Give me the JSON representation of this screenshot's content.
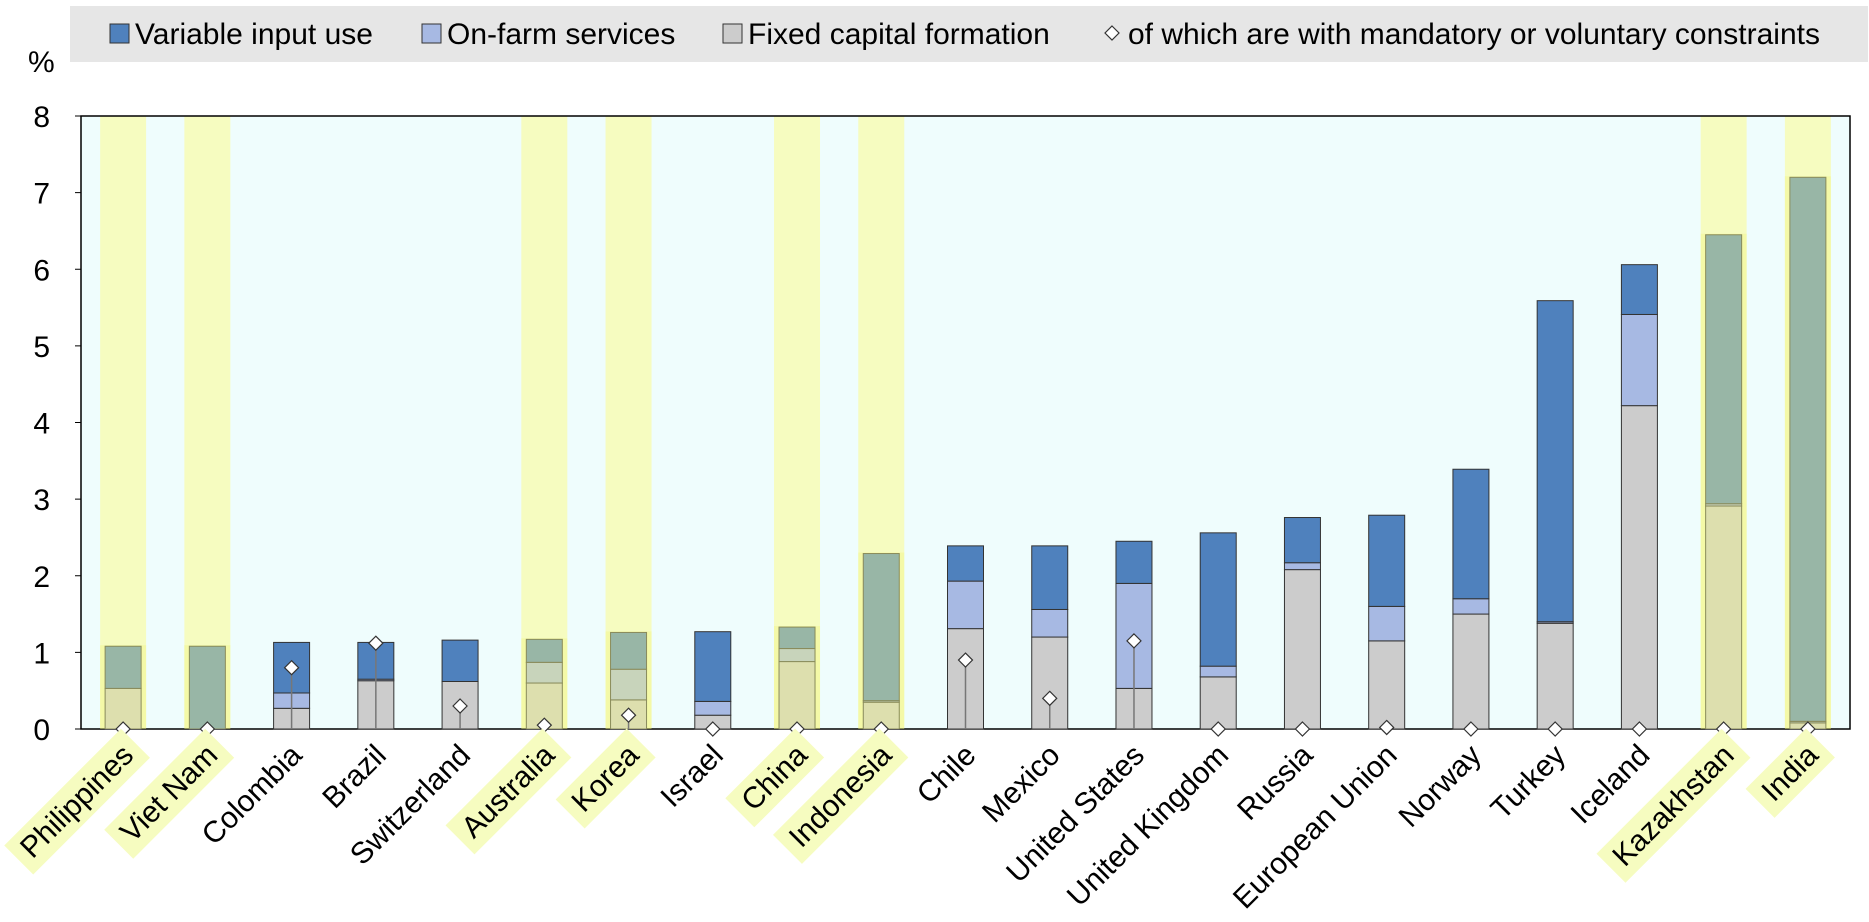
{
  "chart_data": {
    "type": "stacked-bar",
    "y_label": "%",
    "categories": [
      "Philippines",
      "Viet Nam",
      "Colombia",
      "Brazil",
      "Switzerland",
      "Australia",
      "Korea",
      "Israel",
      "China",
      "Indonesia",
      "Chile",
      "Mexico",
      "United States",
      "United Kingdom",
      "Russia",
      "European Union",
      "Norway",
      "Turkey",
      "Iceland",
      "Kazakhstan",
      "India"
    ],
    "highlight": [
      true,
      true,
      false,
      false,
      false,
      true,
      true,
      false,
      true,
      true,
      false,
      false,
      false,
      false,
      false,
      false,
      false,
      false,
      false,
      true,
      true
    ],
    "series": [
      {
        "name": "Fixed capital formation",
        "color": "#cccccc",
        "values": [
          0.53,
          0,
          0.27,
          0.63,
          0.62,
          0.6,
          0.38,
          0.18,
          0.88,
          0.35,
          1.31,
          1.2,
          0.53,
          0.68,
          2.08,
          1.15,
          1.5,
          1.38,
          4.22,
          2.91,
          0.08
        ]
      },
      {
        "name": "On-farm services",
        "color": "#a7b9e3",
        "values": [
          0,
          0,
          0.2,
          0.02,
          0,
          0.27,
          0.4,
          0.18,
          0.17,
          0.02,
          0.62,
          0.36,
          1.37,
          0.14,
          0.09,
          0.45,
          0.2,
          0.02,
          1.19,
          0.03,
          0.02
        ]
      },
      {
        "name": "Variable input use",
        "color": "#4f81bd",
        "values": [
          0.55,
          1.08,
          0.66,
          0.48,
          0.54,
          0.3,
          0.48,
          0.91,
          0.28,
          1.92,
          0.46,
          0.83,
          0.55,
          1.74,
          0.59,
          1.19,
          1.69,
          4.19,
          0.65,
          3.51,
          7.1
        ]
      }
    ],
    "markers": {
      "name": "of which are with mandatory or voluntary constraints",
      "values": [
        0,
        0,
        0.8,
        1.12,
        0.3,
        0.05,
        0.18,
        0,
        0,
        0,
        0.9,
        0.4,
        1.15,
        0,
        0,
        0.02,
        0,
        0,
        0,
        0,
        0
      ]
    },
    "ylim": [
      0,
      8
    ],
    "yticks": [
      0,
      1,
      2,
      3,
      4,
      5,
      6,
      7,
      8
    ]
  }
}
